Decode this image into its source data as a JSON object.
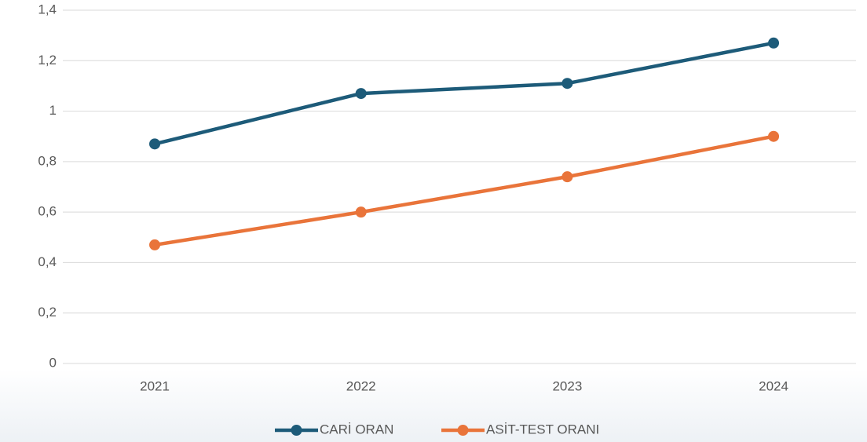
{
  "chart_data": {
    "type": "line",
    "categories": [
      "2021",
      "2022",
      "2023",
      "2024"
    ],
    "series": [
      {
        "name": "CARİ ORAN",
        "color": "#1d5b79",
        "values": [
          0.87,
          1.07,
          1.11,
          1.27
        ]
      },
      {
        "name": "ASİT-TEST ORANI",
        "color": "#e9743a",
        "values": [
          0.47,
          0.6,
          0.74,
          0.9
        ]
      }
    ],
    "ylim": [
      0,
      1.4
    ],
    "yticks": [
      0,
      {
        "value": 0.2,
        "label": "0,2"
      },
      {
        "value": 0.4,
        "label": "0,4"
      },
      {
        "value": 0.6,
        "label": "0,6"
      },
      {
        "value": 0.8,
        "label": "0,8"
      },
      1,
      {
        "value": 1.2,
        "label": "1,2"
      },
      {
        "value": 1.4,
        "label": "1,4"
      }
    ],
    "grid": true,
    "legend": "bottom"
  }
}
